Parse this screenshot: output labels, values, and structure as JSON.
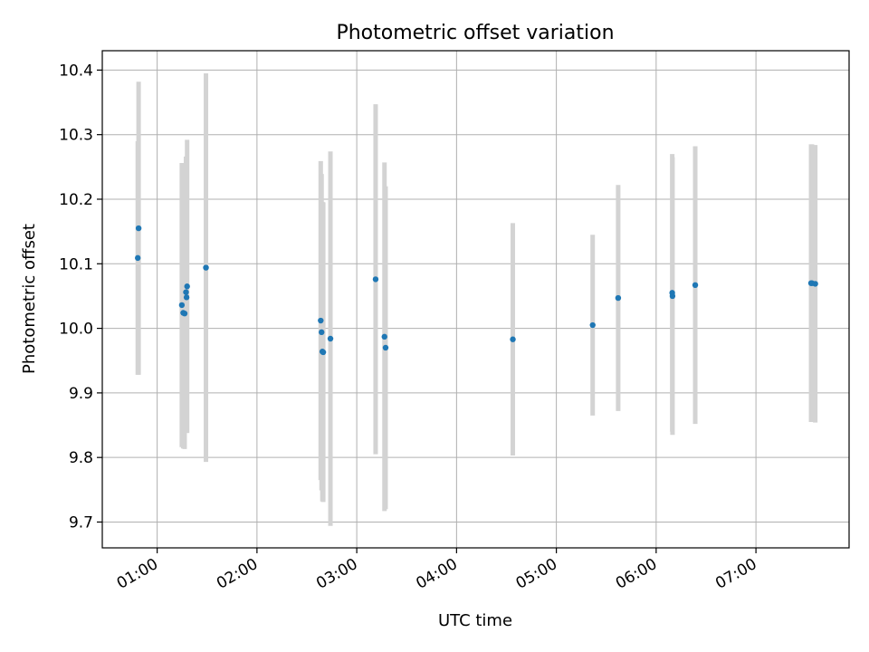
{
  "chart_data": {
    "type": "scatter",
    "title": "Photometric offset variation",
    "xlabel": "UTC time",
    "ylabel": "Photometric offset",
    "x_scale": "time",
    "x_range": [
      "00:27",
      "07:56"
    ],
    "ylim": [
      9.66,
      10.43
    ],
    "grid": true,
    "x_ticks": [
      "01:00",
      "02:00",
      "03:00",
      "04:00",
      "05:00",
      "06:00",
      "07:00"
    ],
    "y_ticks": [
      "9.7",
      "9.8",
      "9.9",
      "10.0",
      "10.1",
      "10.2",
      "10.3",
      "10.4"
    ],
    "marker_color": "#1f77b4",
    "errorbar_color": "#d3d3d3",
    "points": [
      {
        "x": "00:48:50",
        "y": 10.155,
        "err": 0.227
      },
      {
        "x": "00:48:20",
        "y": 10.109,
        "err": 0.181
      },
      {
        "x": "01:14:50",
        "y": 10.036,
        "err": 0.22
      },
      {
        "x": "01:15:40",
        "y": 10.024,
        "err": 0.21
      },
      {
        "x": "01:16:30",
        "y": 10.023,
        "err": 0.21
      },
      {
        "x": "01:17:20",
        "y": 10.056,
        "err": 0.21
      },
      {
        "x": "01:17:40",
        "y": 10.048,
        "err": 0.21
      },
      {
        "x": "01:18:00",
        "y": 10.065,
        "err": 0.227
      },
      {
        "x": "01:29:20",
        "y": 10.094,
        "err": 0.301
      },
      {
        "x": "02:38:20",
        "y": 10.012,
        "err": 0.247
      },
      {
        "x": "02:38:50",
        "y": 9.994,
        "err": 0.245
      },
      {
        "x": "02:39:20",
        "y": 9.964,
        "err": 0.232
      },
      {
        "x": "02:39:50",
        "y": 9.963,
        "err": 0.232
      },
      {
        "x": "02:44:10",
        "y": 9.984,
        "err": 0.29
      },
      {
        "x": "03:11:20",
        "y": 10.076,
        "err": 0.271
      },
      {
        "x": "03:16:40",
        "y": 9.987,
        "err": 0.27
      },
      {
        "x": "03:17:20",
        "y": 9.97,
        "err": 0.25
      },
      {
        "x": "04:33:50",
        "y": 9.983,
        "err": 0.18
      },
      {
        "x": "05:21:50",
        "y": 10.005,
        "err": 0.14
      },
      {
        "x": "05:37:10",
        "y": 10.047,
        "err": 0.175
      },
      {
        "x": "06:09:40",
        "y": 10.055,
        "err": 0.215
      },
      {
        "x": "06:09:50",
        "y": 10.05,
        "err": 0.215
      },
      {
        "x": "06:23:30",
        "y": 10.067,
        "err": 0.215
      },
      {
        "x": "07:33:10",
        "y": 10.07,
        "err": 0.215
      },
      {
        "x": "07:33:40",
        "y": 10.07,
        "err": 0.215
      },
      {
        "x": "07:35:40",
        "y": 10.069,
        "err": 0.215
      }
    ]
  }
}
